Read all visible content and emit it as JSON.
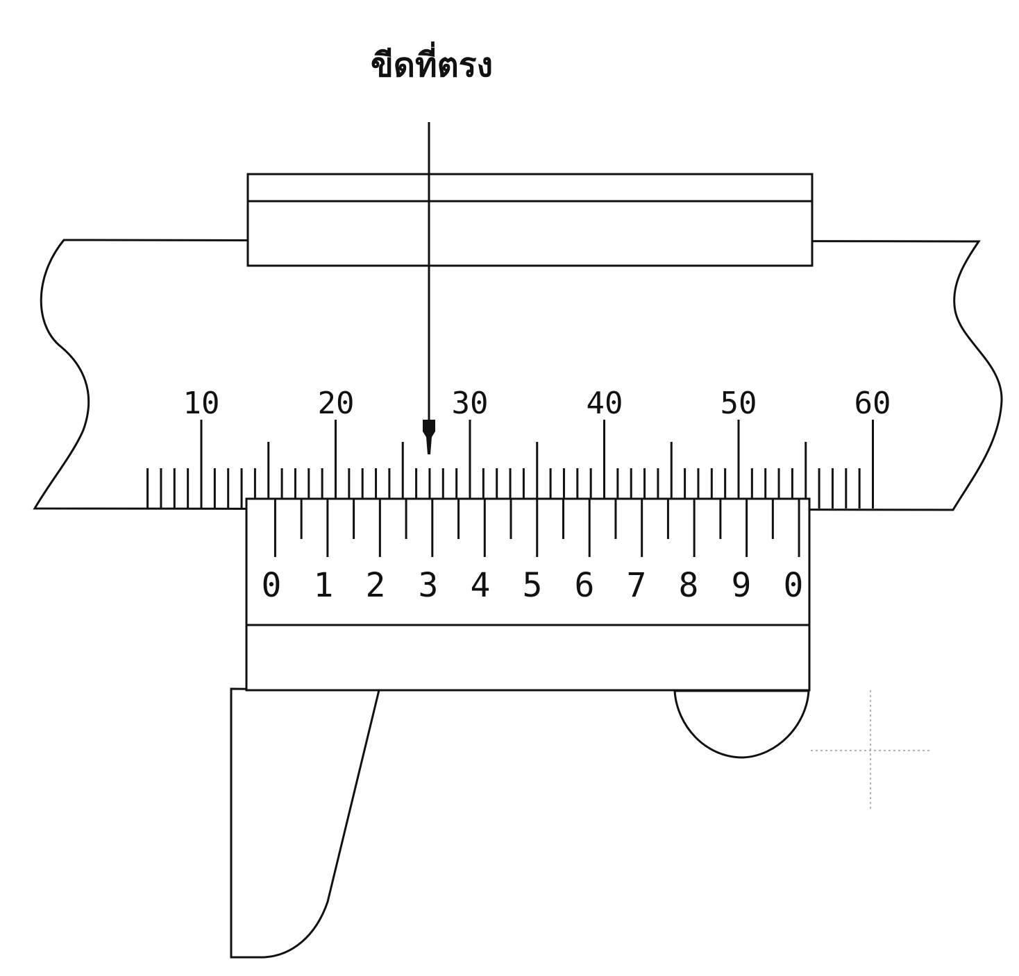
{
  "annotation": {
    "label": "ขีดที่ตรง"
  },
  "main_scale": {
    "labels": [
      "10",
      "20",
      "30",
      "40",
      "50",
      "60"
    ],
    "label_values": [
      10,
      20,
      30,
      40,
      50,
      60
    ],
    "min_mm": 6,
    "max_mm": 60
  },
  "vernier_scale": {
    "labels": [
      "0",
      "1",
      "2",
      "3",
      "4",
      "5",
      "6",
      "7",
      "8",
      "9",
      "0"
    ],
    "divisions": 20,
    "zero_position_mm": 15.5,
    "aligned_label": "3"
  },
  "colors": {
    "line": "#111111",
    "background": "#ffffff"
  }
}
